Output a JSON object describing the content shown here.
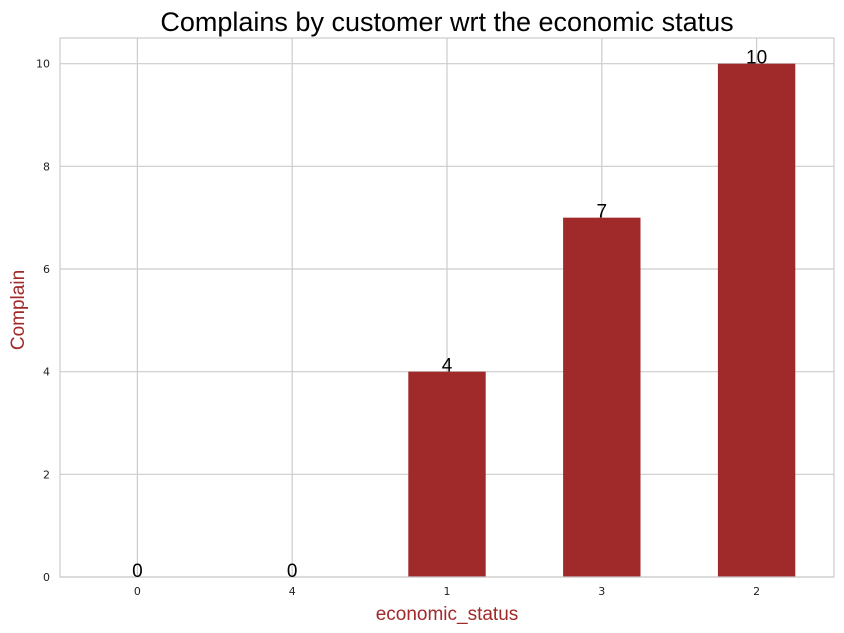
{
  "chart_data": {
    "type": "bar",
    "title": "Complains by customer wrt the economic status",
    "xlabel": "economic_status",
    "ylabel": "Complain",
    "categories": [
      "0",
      "4",
      "1",
      "3",
      "2"
    ],
    "values": [
      0,
      0,
      4,
      7,
      10
    ],
    "data_labels": [
      "0",
      "0",
      "4",
      "7",
      "10"
    ],
    "ylim": [
      0,
      10.5
    ],
    "yticks": [
      0,
      2,
      4,
      6,
      8,
      10
    ],
    "grid": true,
    "legend": "none",
    "colors": {
      "bar": "#a0292a",
      "axis_label": "#a0292a",
      "grid": "#cccccc",
      "background": "#ffffff"
    }
  }
}
